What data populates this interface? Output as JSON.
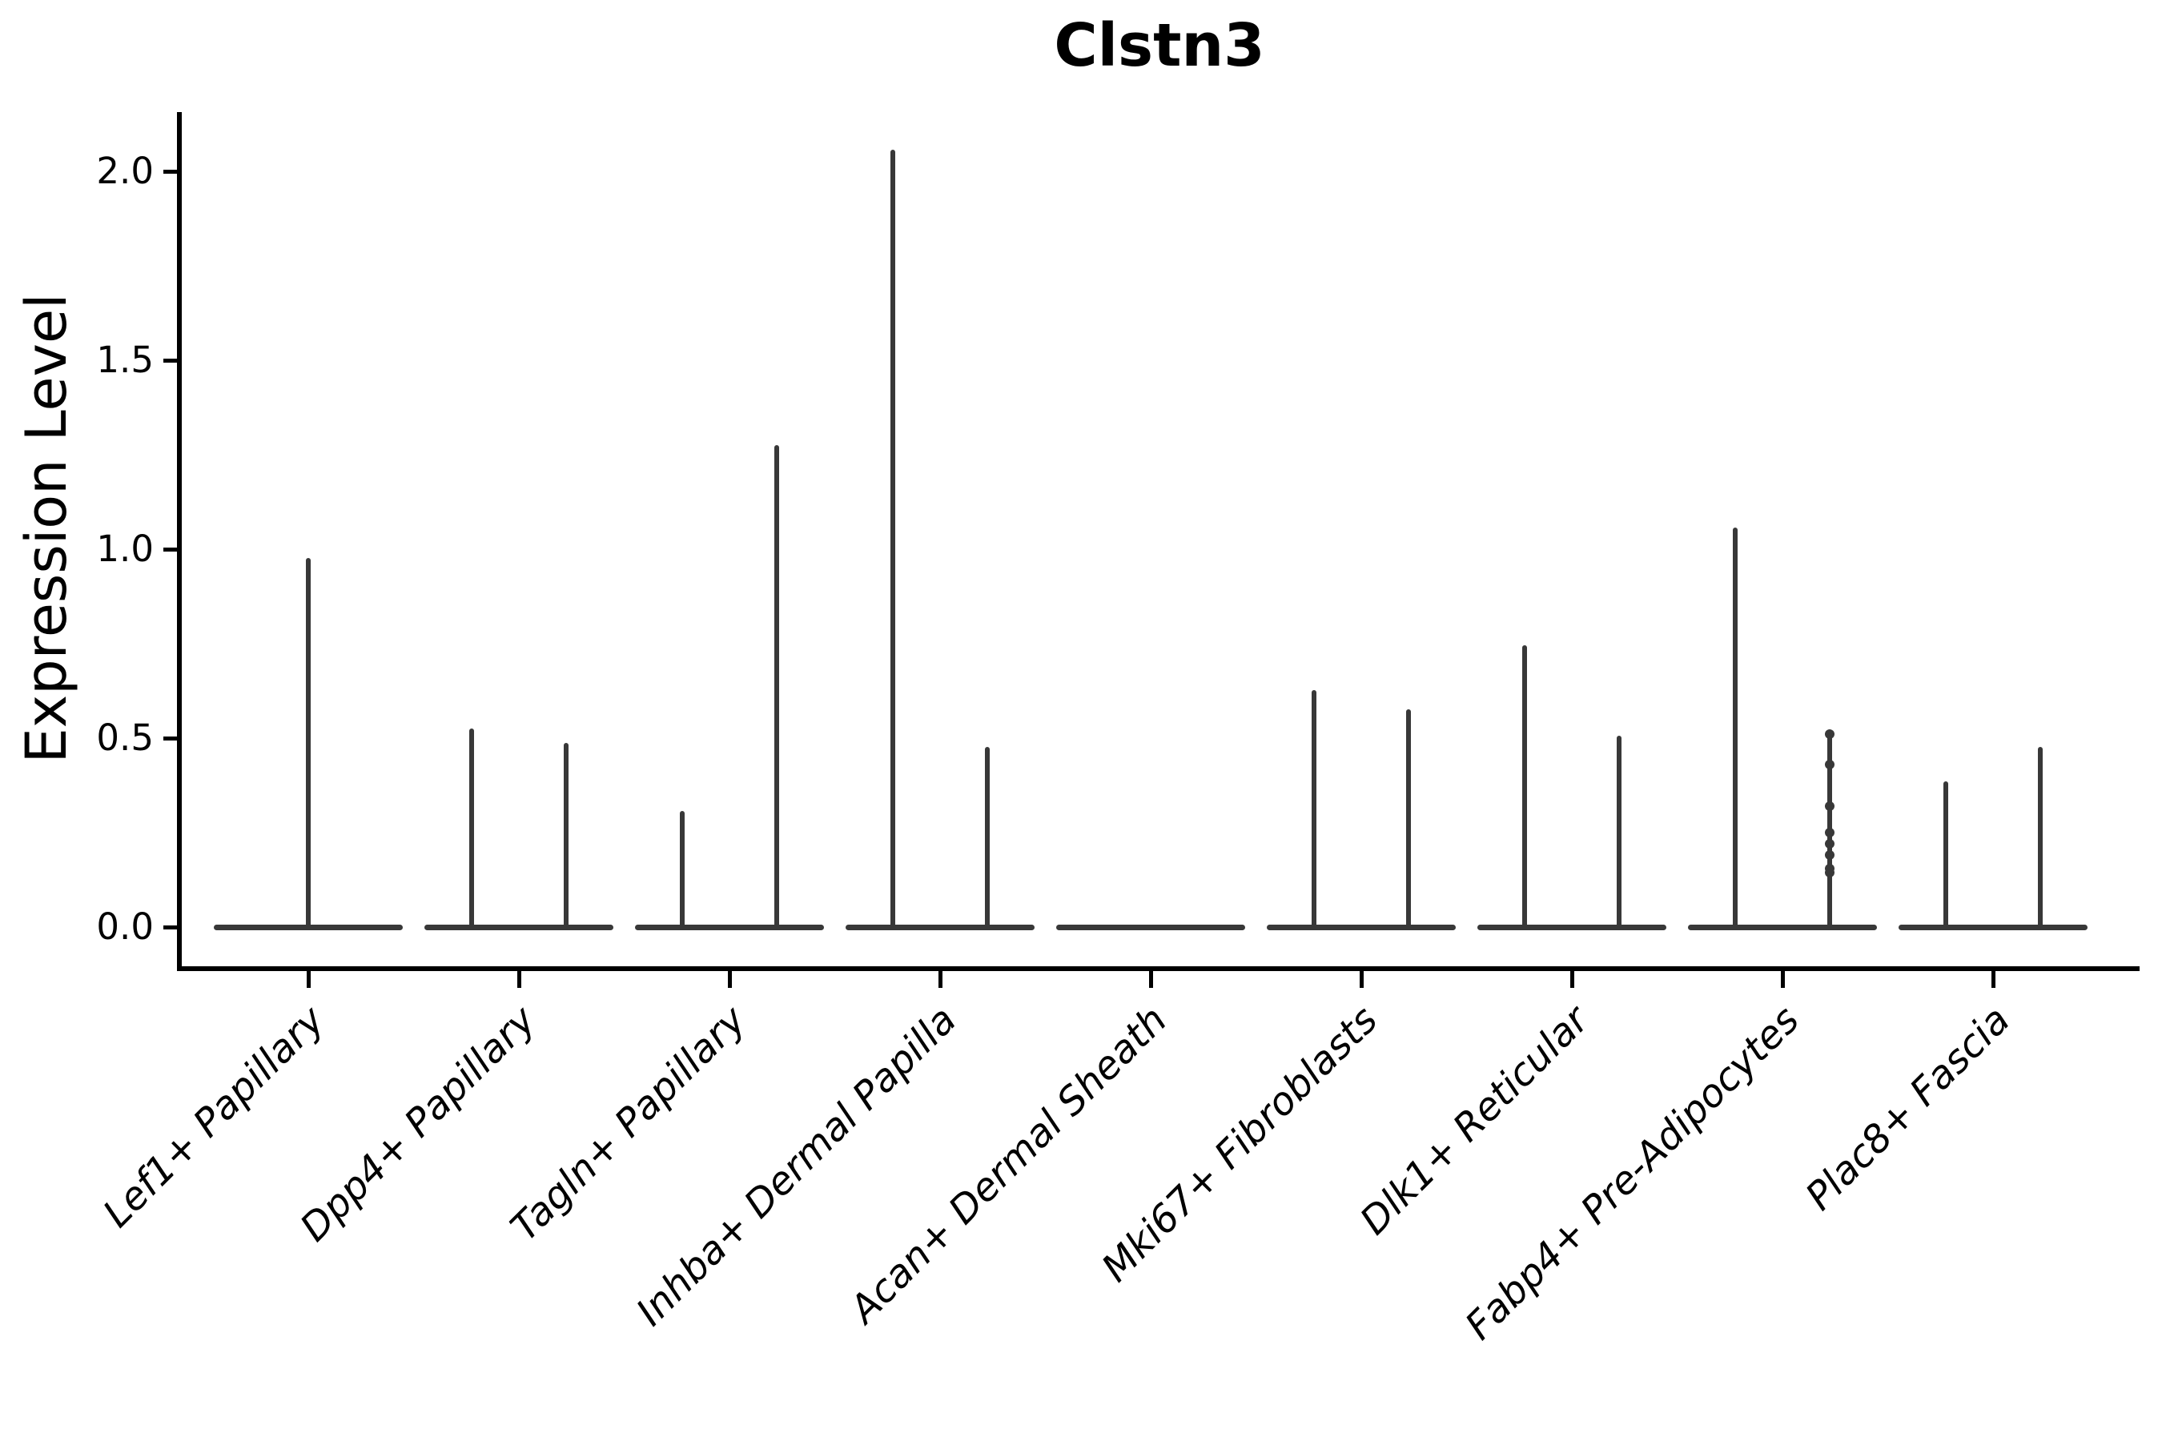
{
  "chart_data": {
    "type": "violin",
    "title": "Clstn3",
    "ylabel": "Expression Level",
    "xlabel": "",
    "ylim": [
      0,
      2.16
    ],
    "yticks": [
      0.0,
      0.5,
      1.0,
      1.5,
      2.0
    ],
    "ytick_labels": [
      "0.0",
      "0.5",
      "1.0",
      "1.5",
      "2.0"
    ],
    "grid": "off",
    "legend": "none",
    "categories": [
      "Lef1+ Papillary",
      "Dpp4+ Papillary",
      "Tagln+ Papillary",
      "Inhba+ Dermal Papilla",
      "Acan+ Dermal Sheath",
      "Mki67+ Fibroblasts",
      "Dlk1+ Reticular",
      "Fabp4+ Pre-Adipocytes",
      "Plac8+ Fascia"
    ],
    "violins": [
      {
        "category": "Lef1+ Papillary",
        "baseline_value": 0,
        "spikes": [
          {
            "position": "center",
            "max": 0.97
          }
        ]
      },
      {
        "category": "Dpp4+ Papillary",
        "baseline_value": 0,
        "spikes": [
          {
            "position": "left",
            "max": 0.52
          },
          {
            "position": "right",
            "max": 0.48
          }
        ]
      },
      {
        "category": "Tagln+ Papillary",
        "baseline_value": 0,
        "spikes": [
          {
            "position": "left",
            "max": 0.3
          },
          {
            "position": "right",
            "max": 1.27
          }
        ]
      },
      {
        "category": "Inhba+ Dermal Papilla",
        "baseline_value": 0,
        "spikes": [
          {
            "position": "left",
            "max": 2.05
          },
          {
            "position": "right",
            "max": 0.47
          }
        ]
      },
      {
        "category": "Acan+ Dermal Sheath",
        "baseline_value": 0,
        "spikes": []
      },
      {
        "category": "Mki67+ Fibroblasts",
        "baseline_value": 0,
        "spikes": [
          {
            "position": "left",
            "max": 0.62
          },
          {
            "position": "right",
            "max": 0.57
          }
        ]
      },
      {
        "category": "Dlk1+ Reticular",
        "baseline_value": 0,
        "spikes": [
          {
            "position": "left",
            "max": 0.74
          },
          {
            "position": "right",
            "max": 0.5
          }
        ]
      },
      {
        "category": "Fabp4+ Pre-Adipocytes",
        "baseline_value": 0,
        "spikes": [
          {
            "position": "left",
            "max": 1.05
          },
          {
            "position": "right",
            "max": 0.51,
            "points": [
              0.51,
              0.43,
              0.32,
              0.25,
              0.22,
              0.19,
              0.155,
              0.145
            ]
          }
        ]
      },
      {
        "category": "Plac8+ Fascia",
        "baseline_value": 0,
        "spikes": [
          {
            "position": "left",
            "max": 0.38
          },
          {
            "position": "right",
            "max": 0.47
          }
        ]
      }
    ],
    "colors": {
      "violin_line": "#383838",
      "axis": "#000000",
      "text": "#000000",
      "background": "#ffffff"
    }
  }
}
